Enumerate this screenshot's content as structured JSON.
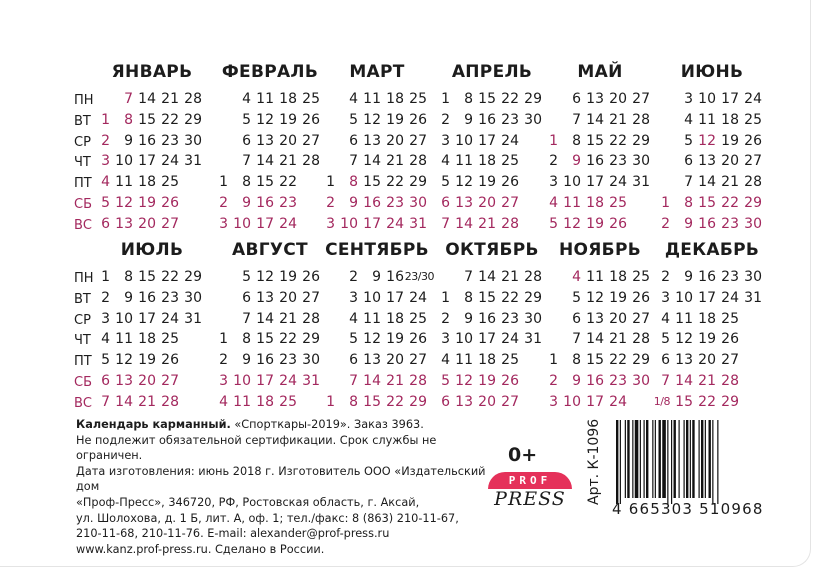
{
  "weekdays": [
    "ПН",
    "ВТ",
    "СР",
    "ЧТ",
    "ПТ",
    "СБ",
    "ВС"
  ],
  "colors": {
    "weekend": "#a3285e",
    "text": "#1c1c1c",
    "logo_red": "#e5315a"
  },
  "months": [
    {
      "name": "ЯНВАРЬ",
      "holidays": [
        "1",
        "2",
        "3",
        "4",
        "7",
        "8"
      ],
      "rows": [
        [
          "",
          "7",
          "14",
          "21",
          "28"
        ],
        [
          "1",
          "8",
          "15",
          "22",
          "29"
        ],
        [
          "2",
          "9",
          "16",
          "23",
          "30"
        ],
        [
          "3",
          "10",
          "17",
          "24",
          "31"
        ],
        [
          "4",
          "11",
          "18",
          "25",
          ""
        ],
        [
          "5",
          "12",
          "19",
          "26",
          ""
        ],
        [
          "6",
          "13",
          "20",
          "27",
          ""
        ]
      ]
    },
    {
      "name": "ФЕВРАЛЬ",
      "holidays": [],
      "rows": [
        [
          "",
          "4",
          "11",
          "18",
          "25"
        ],
        [
          "",
          "5",
          "12",
          "19",
          "26"
        ],
        [
          "",
          "6",
          "13",
          "20",
          "27"
        ],
        [
          "",
          "7",
          "14",
          "21",
          "28"
        ],
        [
          "1",
          "8",
          "15",
          "22",
          ""
        ],
        [
          "2",
          "9",
          "16",
          "23",
          ""
        ],
        [
          "3",
          "10",
          "17",
          "24",
          ""
        ]
      ]
    },
    {
      "name": "МАРТ",
      "holidays": [
        "8"
      ],
      "rows": [
        [
          "",
          "4",
          "11",
          "18",
          "25"
        ],
        [
          "",
          "5",
          "12",
          "19",
          "26"
        ],
        [
          "",
          "6",
          "13",
          "20",
          "27"
        ],
        [
          "",
          "7",
          "14",
          "21",
          "28"
        ],
        [
          "1",
          "8",
          "15",
          "22",
          "29"
        ],
        [
          "2",
          "9",
          "16",
          "23",
          "30"
        ],
        [
          "3",
          "10",
          "17",
          "24",
          "31"
        ]
      ]
    },
    {
      "name": "АПРЕЛЬ",
      "holidays": [],
      "rows": [
        [
          "1",
          "8",
          "15",
          "22",
          "29"
        ],
        [
          "2",
          "9",
          "16",
          "23",
          "30"
        ],
        [
          "3",
          "10",
          "17",
          "24",
          ""
        ],
        [
          "4",
          "11",
          "18",
          "25",
          ""
        ],
        [
          "5",
          "12",
          "19",
          "26",
          ""
        ],
        [
          "6",
          "13",
          "20",
          "27",
          ""
        ],
        [
          "7",
          "14",
          "21",
          "28",
          ""
        ]
      ]
    },
    {
      "name": "МАЙ",
      "holidays": [
        "1",
        "9"
      ],
      "rows": [
        [
          "",
          "6",
          "13",
          "20",
          "27"
        ],
        [
          "",
          "7",
          "14",
          "21",
          "28"
        ],
        [
          "1",
          "8",
          "15",
          "22",
          "29"
        ],
        [
          "2",
          "9",
          "16",
          "23",
          "30"
        ],
        [
          "3",
          "10",
          "17",
          "24",
          "31"
        ],
        [
          "4",
          "11",
          "18",
          "25",
          ""
        ],
        [
          "5",
          "12",
          "19",
          "26",
          ""
        ]
      ]
    },
    {
      "name": "ИЮНЬ",
      "holidays": [
        "12"
      ],
      "rows": [
        [
          "",
          "3",
          "10",
          "17",
          "24"
        ],
        [
          "",
          "4",
          "11",
          "18",
          "25"
        ],
        [
          "",
          "5",
          "12",
          "19",
          "26"
        ],
        [
          "",
          "6",
          "13",
          "20",
          "27"
        ],
        [
          "",
          "7",
          "14",
          "21",
          "28"
        ],
        [
          "1",
          "8",
          "15",
          "22",
          "29"
        ],
        [
          "2",
          "9",
          "16",
          "23",
          "30"
        ]
      ]
    },
    {
      "name": "ИЮЛЬ",
      "holidays": [],
      "rows": [
        [
          "1",
          "8",
          "15",
          "22",
          "29"
        ],
        [
          "2",
          "9",
          "16",
          "23",
          "30"
        ],
        [
          "3",
          "10",
          "17",
          "24",
          "31"
        ],
        [
          "4",
          "11",
          "18",
          "25",
          ""
        ],
        [
          "5",
          "12",
          "19",
          "26",
          ""
        ],
        [
          "6",
          "13",
          "20",
          "27",
          ""
        ],
        [
          "7",
          "14",
          "21",
          "28",
          ""
        ]
      ]
    },
    {
      "name": "АВГУСТ",
      "holidays": [],
      "rows": [
        [
          "",
          "5",
          "12",
          "19",
          "26"
        ],
        [
          "",
          "6",
          "13",
          "20",
          "27"
        ],
        [
          "",
          "7",
          "14",
          "21",
          "28"
        ],
        [
          "1",
          "8",
          "15",
          "22",
          "29"
        ],
        [
          "2",
          "9",
          "16",
          "23",
          "30"
        ],
        [
          "3",
          "10",
          "17",
          "24",
          "31"
        ],
        [
          "4",
          "11",
          "18",
          "25",
          ""
        ]
      ]
    },
    {
      "name": "СЕНТЯБРЬ",
      "holidays": [],
      "rows": [
        [
          "",
          "2",
          "9",
          "16",
          "23/30"
        ],
        [
          "",
          "3",
          "10",
          "17",
          "24"
        ],
        [
          "",
          "4",
          "11",
          "18",
          "25"
        ],
        [
          "",
          "5",
          "12",
          "19",
          "26"
        ],
        [
          "",
          "6",
          "13",
          "20",
          "27"
        ],
        [
          "",
          "7",
          "14",
          "21",
          "28"
        ],
        [
          "1",
          "8",
          "15",
          "22",
          "29"
        ]
      ]
    },
    {
      "name": "ОКТЯБРЬ",
      "holidays": [],
      "rows": [
        [
          "",
          "7",
          "14",
          "21",
          "28"
        ],
        [
          "1",
          "8",
          "15",
          "22",
          "29"
        ],
        [
          "2",
          "9",
          "16",
          "23",
          "30"
        ],
        [
          "3",
          "10",
          "17",
          "24",
          "31"
        ],
        [
          "4",
          "11",
          "18",
          "25",
          ""
        ],
        [
          "5",
          "12",
          "19",
          "26",
          ""
        ],
        [
          "6",
          "13",
          "20",
          "27",
          ""
        ]
      ]
    },
    {
      "name": "НОЯБРЬ",
      "holidays": [
        "4"
      ],
      "rows": [
        [
          "",
          "4",
          "11",
          "18",
          "25"
        ],
        [
          "",
          "5",
          "12",
          "19",
          "26"
        ],
        [
          "",
          "6",
          "13",
          "20",
          "27"
        ],
        [
          "",
          "7",
          "14",
          "21",
          "28"
        ],
        [
          "1",
          "8",
          "15",
          "22",
          "29"
        ],
        [
          "2",
          "9",
          "16",
          "23",
          "30"
        ],
        [
          "3",
          "10",
          "17",
          "24",
          ""
        ]
      ]
    },
    {
      "name": "ДЕКАБРЬ",
      "holidays": [],
      "rows": [
        [
          "2",
          "9",
          "16",
          "23",
          "30"
        ],
        [
          "3",
          "10",
          "17",
          "24",
          "31"
        ],
        [
          "4",
          "11",
          "18",
          "25",
          ""
        ],
        [
          "5",
          "12",
          "19",
          "26",
          ""
        ],
        [
          "6",
          "13",
          "20",
          "27",
          ""
        ],
        [
          "7",
          "14",
          "21",
          "28",
          ""
        ],
        [
          "1/8",
          "15",
          "22",
          "29",
          ""
        ]
      ]
    }
  ],
  "footer": {
    "title": "Календарь карманный.",
    "lines": [
      "«Спорткары-2019». Заказ 3963.",
      "Не подлежит обязательной сертификации. Срок службы не ограничен.",
      "Дата изготовления: июнь 2018 г. Изготовитель ООО «Издательский дом",
      "«Проф-Пресс», 346720, РФ, Ростовская область, г. Аксай,",
      "ул. Шолохова, д. 1 Б, лит. А, оф. 1; тел./факс: 8 (863) 210-11-67,",
      "210-11-68, 210-11-76. E-mail: alexander@prof-press.ru",
      "www.kanz.prof-press.ru. Сделано в России."
    ]
  },
  "age_rating": "0+",
  "logo": {
    "top": "PROF",
    "bottom": "PRESS"
  },
  "article": "Арт. К-1096",
  "barcode_digits": "4 665303 510968"
}
